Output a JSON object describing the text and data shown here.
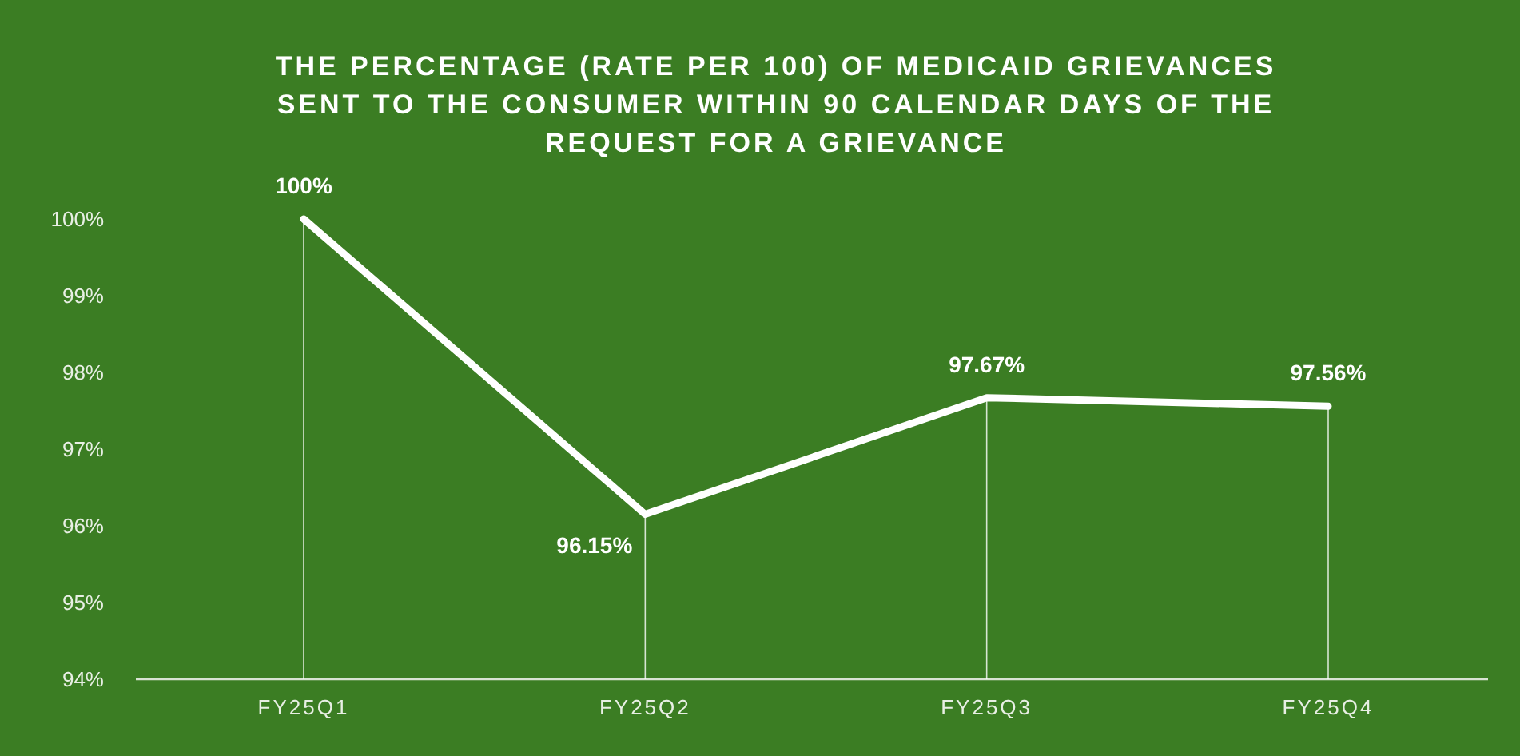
{
  "chart_data": {
    "type": "line",
    "title": "THE PERCENTAGE (RATE PER 100) OF MEDICAID GRIEVANCES\nSENT TO THE CONSUMER WITHIN 90 CALENDAR DAYS OF THE\nREQUEST FOR A GRIEVANCE",
    "categories": [
      "FY25Q1",
      "FY25Q2",
      "FY25Q3",
      "FY25Q4"
    ],
    "series": [
      {
        "color": "#ffffff",
        "values": [
          100,
          96.15,
          97.67,
          97.56
        ],
        "value_labels": [
          "100%",
          "96.15%",
          "97.67%",
          "97.56%"
        ]
      }
    ],
    "ylim": [
      94,
      100
    ],
    "yticks": [
      {
        "value": 94,
        "label": "94%"
      },
      {
        "value": 95,
        "label": "95%"
      },
      {
        "value": 96,
        "label": "96%"
      },
      {
        "value": 97,
        "label": "97%"
      },
      {
        "value": 98,
        "label": "98%"
      },
      {
        "value": 99,
        "label": "99%"
      },
      {
        "value": 100,
        "label": "100%"
      }
    ],
    "grid": "x",
    "marker": "none",
    "line_style": "solid"
  }
}
